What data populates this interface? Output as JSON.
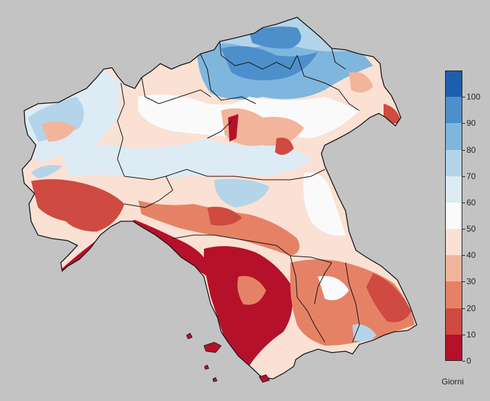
{
  "legend": {
    "unit_label": "Giorni",
    "ticks": [
      "0",
      "10",
      "20",
      "30",
      "40",
      "50",
      "60",
      "70",
      "80",
      "90",
      "100"
    ],
    "classes": [
      {
        "range": "0-10",
        "color": "#b5112a"
      },
      {
        "range": "10-20",
        "color": "#cf4a41"
      },
      {
        "range": "20-30",
        "color": "#e58266"
      },
      {
        "range": "30-40",
        "color": "#f2b49b"
      },
      {
        "range": "40-50",
        "color": "#fbe1d4"
      },
      {
        "range": "50-60",
        "color": "#fafafa"
      },
      {
        "range": "60-70",
        "color": "#dcebf4"
      },
      {
        "range": "70-80",
        "color": "#b4d4ea"
      },
      {
        "range": "80-90",
        "color": "#7fb6de"
      },
      {
        "range": "90-100",
        "color": "#4d8fcb"
      },
      {
        "range": "100-110",
        "color": "#1d5ead"
      }
    ]
  },
  "colors": {
    "background": "#c3c3c3",
    "boundary": "#111111"
  }
}
